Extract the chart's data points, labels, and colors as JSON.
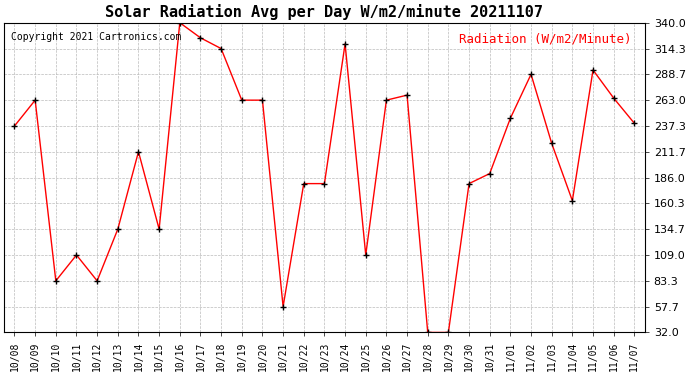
{
  "title": "Solar Radiation Avg per Day W/m2/minute 20211107",
  "copyright": "Copyright 2021 Cartronics.com",
  "legend_label": "Radiation (W/m2/Minute)",
  "labels": [
    "10/08",
    "10/09",
    "10/10",
    "10/11",
    "10/12",
    "10/13",
    "10/14",
    "10/15",
    "10/16",
    "10/17",
    "10/18",
    "10/19",
    "10/20",
    "10/21",
    "10/22",
    "10/23",
    "10/24",
    "10/25",
    "10/26",
    "10/27",
    "10/28",
    "10/29",
    "10/30",
    "10/31",
    "11/01",
    "11/02",
    "11/03",
    "11/04",
    "11/05",
    "11/06",
    "11/07"
  ],
  "values": [
    237.3,
    263.0,
    83.3,
    109.0,
    83.3,
    134.7,
    211.7,
    134.7,
    340.0,
    325.0,
    314.3,
    263.0,
    263.0,
    57.7,
    180.0,
    180.0,
    319.0,
    109.0,
    263.0,
    268.0,
    32.0,
    32.0,
    180.0,
    190.0,
    245.0,
    288.7,
    220.0,
    163.0,
    293.0,
    265.0,
    240.0
  ],
  "line_color": "red",
  "marker_color": "black",
  "bg_color": "white",
  "grid_color": "#bbbbbb",
  "ylim": [
    32.0,
    340.0
  ],
  "yticks": [
    32.0,
    57.7,
    83.3,
    109.0,
    134.7,
    160.3,
    186.0,
    211.7,
    237.3,
    263.0,
    288.7,
    314.3,
    340.0
  ],
  "title_fontsize": 11,
  "copyright_fontsize": 7,
  "legend_fontsize": 9,
  "tick_fontsize": 7,
  "ytick_fontsize": 8
}
